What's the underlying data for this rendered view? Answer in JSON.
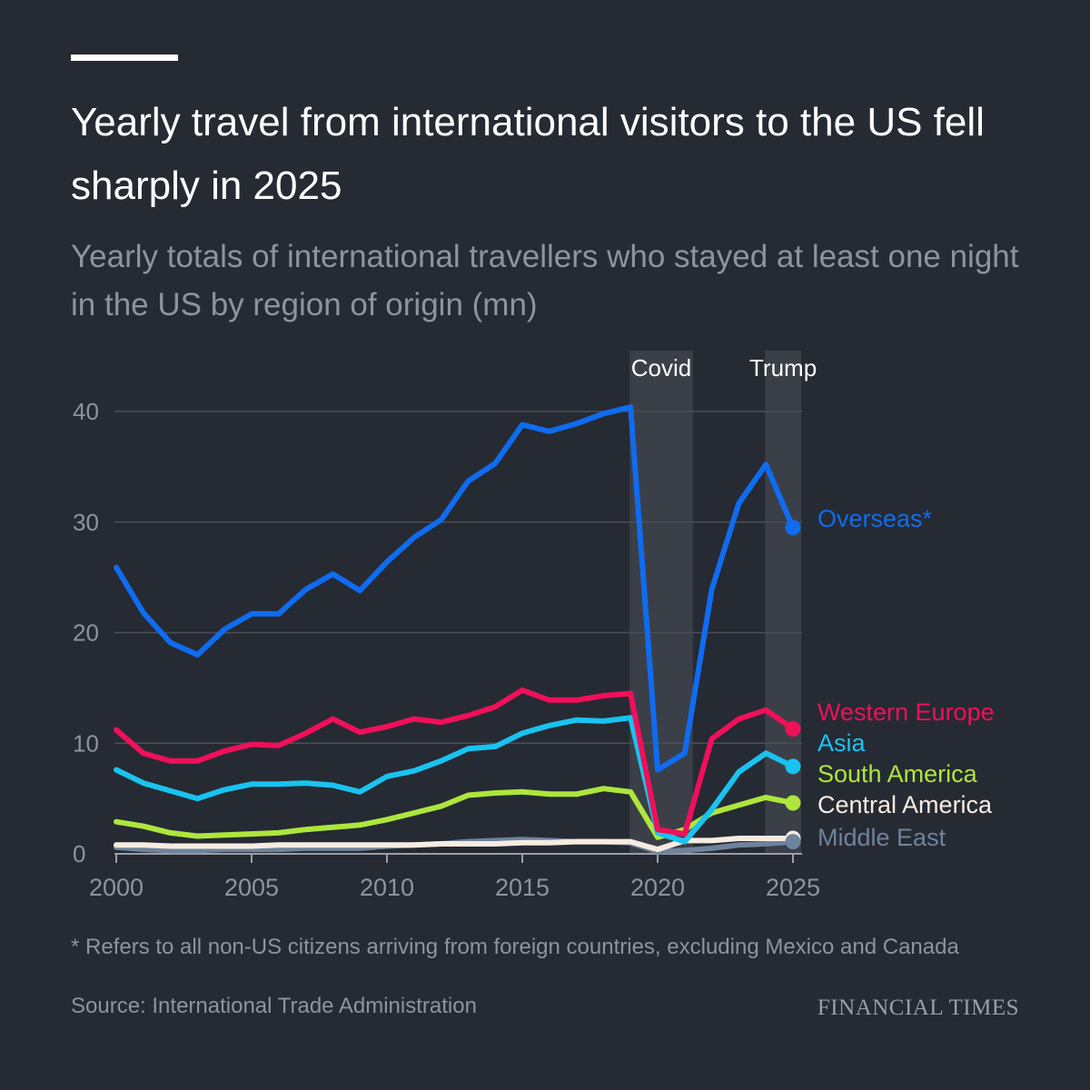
{
  "header": {
    "title": "Yearly travel from international visitors to the US fell sharply in 2025",
    "subtitle": "Yearly totals of international travellers who stayed at least one night in the US by region of origin (mn)"
  },
  "footer": {
    "footnote": "* Refers to all non-US citizens arriving from foreign countries, excluding Mexico and Canada",
    "source": "Source: International Trade Administration",
    "brand": "FINANCIAL TIMES"
  },
  "chart_data": {
    "type": "line",
    "title": "Yearly travel from international visitors to the US fell sharply in 2025",
    "xlabel": "",
    "ylabel": "mn",
    "xlim": [
      2000,
      2025
    ],
    "ylim": [
      0,
      40
    ],
    "y_ticks": [
      0,
      10,
      20,
      30,
      40
    ],
    "x_ticks": [
      2000,
      2005,
      2010,
      2015,
      2020,
      2025
    ],
    "grid": true,
    "x": [
      2000,
      2001,
      2002,
      2003,
      2004,
      2005,
      2006,
      2007,
      2008,
      2009,
      2010,
      2011,
      2012,
      2013,
      2014,
      2015,
      2016,
      2017,
      2018,
      2019,
      2020,
      2021,
      2022,
      2023,
      2024,
      2025
    ],
    "highlights": [
      {
        "label": "Covid",
        "from": 2019,
        "to": 2021
      },
      {
        "label": "Trump",
        "from": 2024,
        "to": 2025
      }
    ],
    "series": [
      {
        "name": "Overseas*",
        "color": "#0f6cf0",
        "values": [
          25.9,
          21.8,
          19.1,
          18.0,
          20.3,
          21.7,
          21.7,
          23.9,
          25.3,
          23.8,
          26.4,
          28.6,
          30.2,
          33.7,
          35.3,
          38.8,
          38.2,
          38.9,
          39.8,
          40.4,
          7.6,
          9.1,
          23.9,
          31.7,
          35.2,
          29.5
        ]
      },
      {
        "name": "Western Europe",
        "color": "#f0105a",
        "values": [
          11.2,
          9.1,
          8.4,
          8.4,
          9.3,
          9.9,
          9.8,
          10.9,
          12.2,
          11.0,
          11.5,
          12.2,
          11.9,
          12.5,
          13.3,
          14.8,
          13.9,
          13.9,
          14.3,
          14.5,
          2.2,
          1.8,
          10.4,
          12.2,
          13.0,
          11.3
        ]
      },
      {
        "name": "Asia",
        "color": "#19c3f0",
        "values": [
          7.6,
          6.4,
          5.7,
          5.0,
          5.8,
          6.3,
          6.3,
          6.4,
          6.2,
          5.6,
          7.0,
          7.5,
          8.4,
          9.5,
          9.7,
          10.9,
          11.6,
          12.1,
          12.0,
          12.3,
          1.9,
          1.1,
          4.0,
          7.4,
          9.1,
          7.9
        ]
      },
      {
        "name": "South America",
        "color": "#aee63c",
        "values": [
          2.9,
          2.5,
          1.9,
          1.6,
          1.7,
          1.8,
          1.9,
          2.2,
          2.4,
          2.6,
          3.1,
          3.7,
          4.3,
          5.3,
          5.5,
          5.6,
          5.4,
          5.4,
          5.9,
          5.6,
          1.5,
          2.2,
          3.7,
          4.4,
          5.1,
          4.6
        ]
      },
      {
        "name": "Central America",
        "color": "#f7ece1",
        "values": [
          0.8,
          0.8,
          0.7,
          0.7,
          0.7,
          0.7,
          0.8,
          0.8,
          0.8,
          0.8,
          0.8,
          0.8,
          0.9,
          0.9,
          0.9,
          1.0,
          1.0,
          1.1,
          1.1,
          1.1,
          0.4,
          1.2,
          1.2,
          1.4,
          1.4,
          1.4
        ]
      },
      {
        "name": "Middle East",
        "color": "#6e839c",
        "values": [
          0.6,
          0.4,
          0.3,
          0.3,
          0.4,
          0.4,
          0.4,
          0.5,
          0.5,
          0.5,
          0.7,
          0.8,
          0.9,
          1.1,
          1.2,
          1.3,
          1.2,
          1.1,
          1.1,
          1.0,
          0.2,
          0.3,
          0.5,
          0.8,
          0.9,
          1.1
        ]
      }
    ]
  }
}
